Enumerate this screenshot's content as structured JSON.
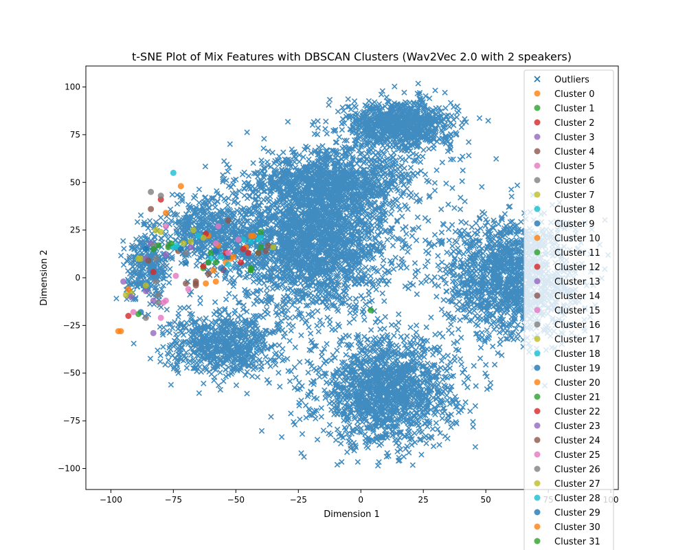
{
  "chart_data": {
    "type": "scatter",
    "title": "t-SNE Plot of Mix Features with DBSCAN Clusters (Wav2Vec 2.0 with 2 speakers)",
    "xlabel": "Dimension 1",
    "ylabel": "Dimension 2",
    "xlim": [
      -110,
      103
    ],
    "ylim": [
      -111,
      111
    ],
    "x_ticks": [
      -100,
      -75,
      -50,
      -25,
      0,
      25,
      50,
      75,
      100
    ],
    "x_tick_labels": [
      "−100",
      "−75",
      "−50",
      "−25",
      "0",
      "25",
      "50",
      "75",
      "100"
    ],
    "y_ticks": [
      -100,
      -75,
      -50,
      -25,
      0,
      25,
      50,
      75,
      100
    ],
    "y_tick_labels": [
      "−100",
      "−75",
      "−50",
      "−25",
      "0",
      "25",
      "50",
      "75",
      "100"
    ],
    "grid": false,
    "legend_position": "upper-right",
    "outliers": {
      "name": "Outliers",
      "marker": "x",
      "color": "#1f77b4",
      "regions": [
        {
          "center": [
            -20,
            20
          ],
          "spread": [
            30,
            35
          ],
          "count": 2400
        },
        {
          "center": [
            10,
            -60
          ],
          "spread": [
            25,
            25
          ],
          "count": 1500
        },
        {
          "center": [
            15,
            80
          ],
          "spread": [
            20,
            12
          ],
          "count": 900
        },
        {
          "center": [
            60,
            0
          ],
          "spread": [
            25,
            30
          ],
          "count": 1500
        },
        {
          "center": [
            -55,
            -35
          ],
          "spread": [
            20,
            15
          ],
          "count": 700
        },
        {
          "center": [
            -60,
            25
          ],
          "spread": [
            18,
            15
          ],
          "count": 500
        },
        {
          "center": [
            -10,
            50
          ],
          "spread": [
            30,
            15
          ],
          "count": 900
        },
        {
          "center": [
            -85,
            5
          ],
          "spread": [
            8,
            15
          ],
          "count": 300
        }
      ]
    },
    "clusters": [
      {
        "name": "Cluster 0",
        "color": "#ff7f0e",
        "points": [
          [
            -72,
            48
          ],
          [
            -61,
            22
          ],
          [
            -57,
            17
          ],
          [
            -54,
            8
          ]
        ]
      },
      {
        "name": "Cluster 1",
        "color": "#2ca02c",
        "points": [
          [
            4,
            -17
          ],
          [
            -58,
            8
          ],
          [
            -60,
            13
          ],
          [
            -63,
            5
          ]
        ]
      },
      {
        "name": "Cluster 2",
        "color": "#d62728",
        "points": [
          [
            -80,
            41
          ],
          [
            -62,
            23
          ],
          [
            -54,
            13
          ],
          [
            -55,
            4
          ]
        ]
      },
      {
        "name": "Cluster 3",
        "color": "#9467bd",
        "points": [
          [
            -83,
            -29
          ],
          [
            -78,
            12
          ],
          [
            -68,
            16
          ]
        ]
      },
      {
        "name": "Cluster 4",
        "color": "#8c564b",
        "points": [
          [
            -53,
            30
          ],
          [
            -66,
            -2
          ],
          [
            -61,
            2
          ],
          [
            -73,
            14
          ]
        ]
      },
      {
        "name": "Cluster 5",
        "color": "#e377c2",
        "points": [
          [
            -57,
            27
          ],
          [
            -58,
            18
          ],
          [
            -74,
            1
          ],
          [
            -69,
            -6
          ]
        ]
      },
      {
        "name": "Cluster 6",
        "color": "#7f7f7f",
        "points": [
          [
            -84,
            45
          ],
          [
            -80,
            43
          ],
          [
            -82,
            10
          ],
          [
            -77,
            17
          ]
        ]
      },
      {
        "name": "Cluster 7",
        "color": "#bcbd22",
        "points": [
          [
            -82,
            25
          ],
          [
            -71,
            18
          ],
          [
            -67,
            25
          ],
          [
            -63,
            21
          ]
        ]
      },
      {
        "name": "Cluster 8",
        "color": "#17becf",
        "points": [
          [
            -75,
            55
          ],
          [
            -73,
            16
          ],
          [
            -65,
            22
          ],
          [
            -47,
            20
          ]
        ]
      },
      {
        "name": "Cluster 9",
        "color": "#1f77b4",
        "points": [
          [
            -88,
            -18
          ],
          [
            -72,
            15
          ],
          [
            -61,
            8
          ]
        ]
      },
      {
        "name": "Cluster 10",
        "color": "#ff7f0e",
        "points": [
          [
            -96,
            -28
          ],
          [
            -52,
            10
          ],
          [
            -46,
            16
          ],
          [
            -43,
            22
          ]
        ]
      },
      {
        "name": "Cluster 11",
        "color": "#2ca02c",
        "points": [
          [
            -89,
            -19
          ],
          [
            -44,
            4
          ],
          [
            -41,
            13
          ],
          [
            -40,
            24
          ]
        ]
      },
      {
        "name": "Cluster 12",
        "color": "#d62728",
        "points": [
          [
            -93,
            -20
          ],
          [
            -45,
            13
          ],
          [
            -48,
            8
          ]
        ]
      },
      {
        "name": "Cluster 13",
        "color": "#9467bd",
        "points": [
          [
            -95,
            -2
          ],
          [
            -86,
            -7
          ],
          [
            -83,
            -12
          ]
        ]
      },
      {
        "name": "Cluster 14",
        "color": "#8c564b",
        "points": [
          [
            -84,
            36
          ],
          [
            -66,
            -4
          ],
          [
            -41,
            13
          ],
          [
            -37,
            17
          ]
        ]
      },
      {
        "name": "Cluster 15",
        "color": "#e377c2",
        "points": [
          [
            -91,
            -18
          ],
          [
            -78,
            -12
          ],
          [
            -80,
            -21
          ]
        ]
      },
      {
        "name": "Cluster 16",
        "color": "#7f7f7f",
        "points": [
          [
            -86,
            -21
          ],
          [
            -81,
            -13
          ],
          [
            -81,
            -9
          ]
        ]
      },
      {
        "name": "Cluster 17",
        "color": "#bcbd22",
        "points": [
          [
            -92,
            -8
          ],
          [
            -86,
            -4
          ],
          [
            -88,
            10
          ],
          [
            -35,
            16
          ]
        ]
      },
      {
        "name": "Cluster 18",
        "color": "#17becf",
        "points": [
          [
            -74,
            17
          ],
          [
            -56,
            11
          ],
          [
            -53,
            7
          ],
          [
            -41,
            20
          ]
        ]
      },
      {
        "name": "Cluster 19",
        "color": "#1f77b4",
        "points": [
          [
            -56,
            5
          ],
          [
            -54,
            3
          ],
          [
            -53,
            11
          ]
        ]
      },
      {
        "name": "Cluster 20",
        "color": "#ff7f0e",
        "points": [
          [
            -93,
            -6
          ],
          [
            -78,
            34
          ],
          [
            -58,
            -2
          ],
          [
            -59,
            4
          ]
        ]
      },
      {
        "name": "Cluster 21",
        "color": "#2ca02c",
        "points": [
          [
            -81,
            17
          ],
          [
            -77,
            16
          ],
          [
            -44,
            5
          ],
          [
            -40,
            16
          ]
        ]
      },
      {
        "name": "Cluster 22",
        "color": "#d62728",
        "points": [
          [
            -83,
            3
          ],
          [
            -63,
            6
          ],
          [
            -47,
            15
          ]
        ]
      },
      {
        "name": "Cluster 23",
        "color": "#9467bd",
        "points": [
          [
            -92,
            -10
          ],
          [
            -86,
            10
          ],
          [
            -84,
            18
          ]
        ]
      },
      {
        "name": "Cluster 24",
        "color": "#8c564b",
        "points": [
          [
            -85,
            9
          ],
          [
            -70,
            -3
          ],
          [
            -66,
            -3
          ],
          [
            -38,
            14
          ]
        ]
      },
      {
        "name": "Cluster 25",
        "color": "#e377c2",
        "points": [
          [
            -79,
            -13
          ],
          [
            -78,
            27
          ],
          [
            -53,
            13
          ],
          [
            -49,
            20
          ]
        ]
      },
      {
        "name": "Cluster 26",
        "color": "#7f7f7f",
        "points": [
          [
            -83,
            17
          ],
          [
            -82,
            -2
          ],
          [
            -70,
            13
          ]
        ]
      },
      {
        "name": "Cluster 27",
        "color": "#bcbd22",
        "points": [
          [
            -94,
            -9
          ],
          [
            -89,
            10
          ],
          [
            -80,
            24
          ],
          [
            -68,
            19
          ]
        ]
      },
      {
        "name": "Cluster 28",
        "color": "#17becf",
        "points": [
          [
            -75,
            16
          ],
          [
            -60,
            10
          ],
          [
            -44,
            19
          ],
          [
            -40,
            21
          ]
        ]
      },
      {
        "name": "Cluster 29",
        "color": "#1f77b4",
        "points": [
          [
            -86,
            15
          ],
          [
            -70,
            8
          ],
          [
            -58,
            14
          ]
        ]
      },
      {
        "name": "Cluster 30",
        "color": "#ff7f0e",
        "points": [
          [
            -97,
            -28
          ],
          [
            -62,
            -3
          ],
          [
            -51,
            11
          ],
          [
            -44,
            22
          ]
        ]
      },
      {
        "name": "Cluster 31",
        "color": "#2ca02c",
        "points": [
          [
            -83,
            15
          ],
          [
            -76,
            18
          ],
          [
            -61,
            8
          ],
          [
            -44,
            4
          ]
        ]
      }
    ]
  }
}
